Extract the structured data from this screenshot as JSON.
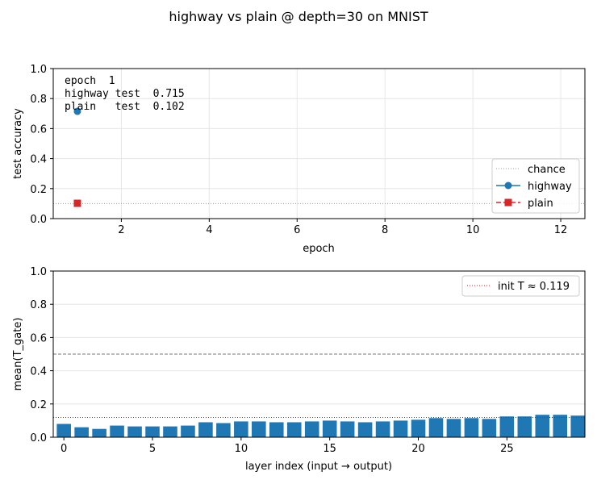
{
  "figure": {
    "title": "highway vs plain @ depth=30 on MNIST"
  },
  "colors": {
    "highway": "#1f77b4",
    "plain": "#d62728",
    "chance": "#999999",
    "half_line": "#777777",
    "init_line": "#ff0000",
    "grid": "#e6e6e6"
  },
  "chart_data": [
    {
      "type": "scatter",
      "xlabel": "epoch",
      "ylabel": "test accuracy",
      "xlim": [
        0.45,
        12.55
      ],
      "ylim": [
        0,
        1
      ],
      "xticks": [
        "2",
        "4",
        "6",
        "8",
        "10",
        "12"
      ],
      "yticks": [
        "0.0",
        "0.2",
        "0.4",
        "0.6",
        "0.8",
        "1.0"
      ],
      "grid": true,
      "legend_position": "lower-right",
      "chance_level": 0.1,
      "series": [
        {
          "name": "highway",
          "x": [
            1
          ],
          "y": [
            0.715
          ],
          "marker": "circle"
        },
        {
          "name": "plain",
          "x": [
            1
          ],
          "y": [
            0.102
          ],
          "marker": "square"
        }
      ],
      "legend": [
        "chance",
        "highway",
        "plain"
      ],
      "annotation": [
        "epoch  1",
        "highway test  0.715",
        "plain   test  0.102"
      ]
    },
    {
      "type": "bar",
      "xlabel": "layer index (input → output)",
      "ylabel": "mean(T_gate)",
      "xlim": [
        -0.6,
        29.4
      ],
      "ylim": [
        0,
        1
      ],
      "xticks": [
        "0",
        "5",
        "10",
        "15",
        "20",
        "25"
      ],
      "yticks": [
        "0.0",
        "0.2",
        "0.4",
        "0.6",
        "0.8",
        "1.0"
      ],
      "grid": true,
      "legend_position": "top-right",
      "reference_line": 0.5,
      "init_T": 0.119,
      "legend": [
        "init T ≈ 0.119"
      ],
      "categories": [
        0,
        1,
        2,
        3,
        4,
        5,
        6,
        7,
        8,
        9,
        10,
        11,
        12,
        13,
        14,
        15,
        16,
        17,
        18,
        19,
        20,
        21,
        22,
        23,
        24,
        25,
        26,
        27,
        28,
        29
      ],
      "values": [
        0.08,
        0.06,
        0.05,
        0.07,
        0.065,
        0.065,
        0.065,
        0.07,
        0.09,
        0.085,
        0.095,
        0.095,
        0.09,
        0.09,
        0.095,
        0.1,
        0.095,
        0.09,
        0.095,
        0.1,
        0.105,
        0.115,
        0.11,
        0.115,
        0.11,
        0.125,
        0.125,
        0.135,
        0.135,
        0.13
      ]
    }
  ]
}
